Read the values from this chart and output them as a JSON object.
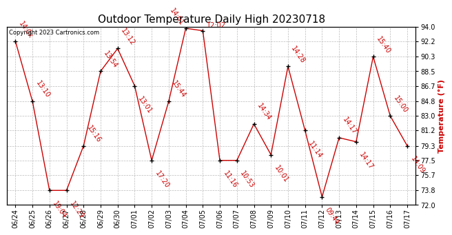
{
  "title": "Outdoor Temperature Daily High 20230718",
  "ylabel": "Temperature (°F)",
  "copyright": "Copyright 2023 Cartronics.com",
  "background_color": "#ffffff",
  "line_color": "#cc0000",
  "marker_color": "#000000",
  "label_color": "#cc0000",
  "dates": [
    "06/24",
    "06/25",
    "06/26",
    "06/27",
    "06/28",
    "06/29",
    "06/30",
    "07/01",
    "07/02",
    "07/03",
    "07/04",
    "07/05",
    "07/06",
    "07/07",
    "07/08",
    "07/09",
    "07/10",
    "07/11",
    "07/12",
    "07/13",
    "07/14",
    "07/15",
    "07/16",
    "07/17"
  ],
  "values": [
    92.2,
    84.8,
    73.8,
    73.8,
    79.3,
    88.5,
    91.3,
    86.7,
    77.5,
    84.8,
    93.8,
    93.5,
    77.5,
    77.5,
    82.0,
    78.2,
    89.1,
    81.2,
    73.0,
    80.3,
    79.8,
    90.3,
    83.0,
    79.3
  ],
  "time_labels": [
    "14:0x",
    "13:10",
    "19:04",
    "12:29",
    "15:16",
    "13:54",
    "13:12",
    "13:01",
    "17:20",
    "15:44",
    "14:01",
    "12:02",
    "11:16",
    "10:53",
    "14:34",
    "10:01",
    "14:28",
    "11:14",
    "09:44",
    "14:17",
    "14:17",
    "15:40",
    "15:00",
    "14:09"
  ],
  "ylim_min": 72.0,
  "ylim_max": 94.0,
  "yticks": [
    72.0,
    73.8,
    75.7,
    77.5,
    79.3,
    81.2,
    83.0,
    84.8,
    86.7,
    88.5,
    90.3,
    92.2,
    94.0
  ],
  "grid_color": "#bbbbbb",
  "title_fontsize": 11,
  "anno_fontsize": 7,
  "tick_fontsize": 7,
  "ylabel_fontsize": 8
}
